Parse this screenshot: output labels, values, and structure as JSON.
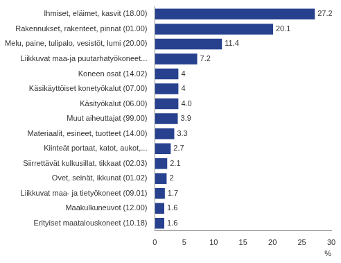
{
  "chart_data": {
    "type": "bar",
    "orientation": "horizontal",
    "categories": [
      "Ihmiset, eläimet, kasvit (18.00)",
      "Rakennukset, rakenteet, pinnat (01.00)",
      "Melu, paine, tulipalo, vesistöt, lumi (20.00)",
      "Liikkuvat maa-ja puutarhatyökoneet...",
      "Koneen osat (14.02)",
      "Käsikäyttöiset konetyökalut (07.00)",
      "Käsityökalut (06.00)",
      "Muut aiheuttajat (99.00)",
      "Materiaalit, esineet, tuotteet (14.00)",
      "Kiinteät portaat, katot, aukot,...",
      "Siirrettävät kulkusillat, tikkaat (02.03)",
      "Ovet, seinät, ikkunat (01.02)",
      "Liikkuvat maa- ja tietyökoneet (09.01)",
      "Maakulkuneuvot (12.00)",
      "Erityiset maatalouskoneet (10.18)"
    ],
    "values": [
      27.2,
      20.1,
      11.4,
      7.2,
      4,
      4,
      4.0,
      3.9,
      3.3,
      2.7,
      2.1,
      2,
      1.7,
      1.6,
      1.6
    ],
    "value_labels": [
      "27.2",
      "20.1",
      "11.4",
      "7.2",
      "4",
      "4",
      "4.0",
      "3.9",
      "3.3",
      "2.7",
      "2.1",
      "2",
      "1.7",
      "1.6",
      "1.6"
    ],
    "data_labels": true,
    "color": "#27418f",
    "x_label": "%",
    "xlim": [
      0,
      30
    ],
    "xticks": [
      0,
      5,
      10,
      15,
      20,
      25,
      30
    ],
    "grid": false
  }
}
